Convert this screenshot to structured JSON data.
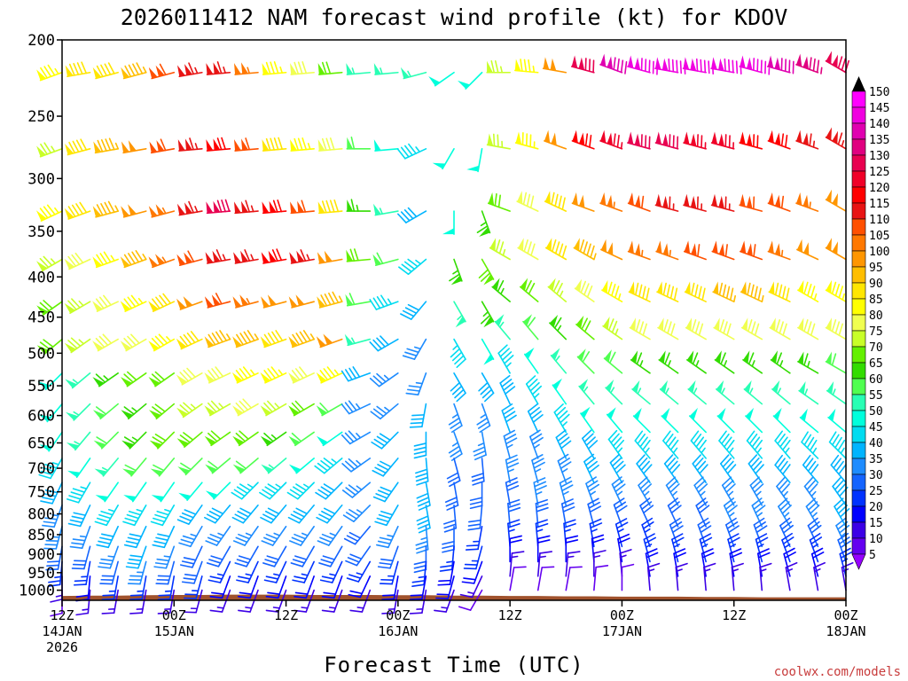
{
  "chart_data": {
    "type": "wind-barb-profile",
    "title": "2026011412 NAM forecast wind profile (kt) for KDOV",
    "xlabel": "Forecast Time (UTC)",
    "credit": "coolwx.com/models",
    "y_ticks": [
      "200",
      "250",
      "300",
      "350",
      "400",
      "450",
      "500",
      "550",
      "600",
      "650",
      "700",
      "750",
      "800",
      "850",
      "900",
      "950",
      "1000"
    ],
    "x_ticks": [
      {
        "hour": 0,
        "line1": "12Z",
        "line2": "14JAN",
        "line3": "2026"
      },
      {
        "hour": 12,
        "line1": "00Z",
        "line2": "15JAN",
        "line3": ""
      },
      {
        "hour": 24,
        "line1": "12Z",
        "line2": "",
        "line3": ""
      },
      {
        "hour": 36,
        "line1": "00Z",
        "line2": "16JAN",
        "line3": ""
      },
      {
        "hour": 48,
        "line1": "12Z",
        "line2": "",
        "line3": ""
      },
      {
        "hour": 60,
        "line1": "00Z",
        "line2": "17JAN",
        "line3": ""
      },
      {
        "hour": 72,
        "line1": "12Z",
        "line2": "",
        "line3": ""
      },
      {
        "hour": 84,
        "line1": "00Z",
        "line2": "18JAN",
        "line3": ""
      }
    ],
    "x_range_hours": [
      0,
      84
    ],
    "y_range_hpa": [
      200,
      1030
    ],
    "y_scale": "log",
    "colorbar": {
      "labels": [
        "150",
        "145",
        "140",
        "135",
        "130",
        "125",
        "120",
        "115",
        "110",
        "105",
        "100",
        "95",
        "90",
        "85",
        "80",
        "75",
        "70",
        "65",
        "60",
        "55",
        "50",
        "45",
        "40",
        "35",
        "30",
        "25",
        "20",
        "15",
        "10",
        "5"
      ],
      "colors": [
        "#ff00ff",
        "#f000e0",
        "#e000b0",
        "#e00080",
        "#e80050",
        "#f00028",
        "#ff0000",
        "#e81414",
        "#ff5000",
        "#ff7800",
        "#ff9600",
        "#ffbe00",
        "#ffe600",
        "#ffff00",
        "#f0ff50",
        "#c8ff28",
        "#64f000",
        "#32dc00",
        "#50ff50",
        "#28ffb4",
        "#00ffdc",
        "#00dcf0",
        "#00b4ff",
        "#1e8cff",
        "#1464ff",
        "#0032ff",
        "#0000ff",
        "#3c00e6",
        "#6400f0",
        "#9600ff"
      ]
    },
    "barb_times_hours": [
      0,
      3,
      6,
      9,
      12,
      15,
      18,
      21,
      24,
      27,
      30,
      33,
      36,
      39,
      42,
      45,
      48,
      51,
      54,
      57,
      60,
      63,
      66,
      69,
      72,
      75,
      78,
      81,
      84
    ],
    "barb_levels_hpa": [
      220,
      275,
      330,
      380,
      430,
      480,
      530,
      580,
      630,
      680,
      730,
      780,
      830,
      880,
      920,
      960,
      1000
    ],
    "barb_direction_deg": [
      [
        250,
        260,
        255,
        255,
        255,
        260,
        265,
        265,
        265,
        265,
        265,
        265,
        265,
        255,
        235,
        225,
        270,
        275,
        280,
        285,
        290,
        285,
        280,
        280,
        280,
        285,
        285,
        290,
        300
      ],
      [
        250,
        255,
        260,
        260,
        260,
        265,
        265,
        265,
        265,
        265,
        265,
        270,
        265,
        245,
        210,
        190,
        280,
        285,
        290,
        290,
        290,
        285,
        285,
        285,
        285,
        285,
        290,
        290,
        300
      ],
      [
        245,
        250,
        255,
        255,
        255,
        260,
        265,
        265,
        265,
        265,
        265,
        270,
        260,
        240,
        180,
        160,
        290,
        295,
        295,
        290,
        290,
        290,
        285,
        285,
        285,
        285,
        290,
        290,
        300
      ],
      [
        240,
        245,
        250,
        250,
        250,
        255,
        260,
        260,
        260,
        260,
        260,
        265,
        255,
        230,
        160,
        150,
        300,
        300,
        300,
        300,
        295,
        290,
        290,
        290,
        290,
        290,
        290,
        295,
        300
      ],
      [
        235,
        240,
        245,
        245,
        245,
        250,
        255,
        255,
        255,
        255,
        255,
        260,
        250,
        220,
        150,
        150,
        310,
        310,
        310,
        305,
        300,
        295,
        295,
        295,
        295,
        295,
        295,
        300,
        300
      ],
      [
        230,
        235,
        240,
        240,
        240,
        245,
        250,
        250,
        250,
        250,
        250,
        255,
        240,
        210,
        150,
        150,
        320,
        320,
        315,
        310,
        305,
        300,
        300,
        300,
        300,
        300,
        300,
        300,
        300
      ],
      [
        225,
        230,
        235,
        235,
        235,
        240,
        245,
        245,
        245,
        245,
        245,
        250,
        235,
        200,
        150,
        150,
        330,
        325,
        320,
        315,
        310,
        305,
        305,
        305,
        305,
        305,
        305,
        300,
        300
      ],
      [
        220,
        225,
        230,
        230,
        230,
        235,
        240,
        240,
        240,
        240,
        240,
        245,
        230,
        190,
        160,
        160,
        335,
        330,
        325,
        320,
        315,
        310,
        310,
        310,
        310,
        310,
        310,
        305,
        305
      ],
      [
        215,
        220,
        225,
        225,
        225,
        230,
        235,
        235,
        235,
        235,
        235,
        240,
        225,
        180,
        160,
        170,
        340,
        335,
        330,
        325,
        320,
        315,
        315,
        315,
        315,
        315,
        315,
        310,
        310
      ],
      [
        210,
        215,
        220,
        220,
        220,
        225,
        230,
        230,
        230,
        230,
        230,
        235,
        220,
        175,
        165,
        175,
        345,
        340,
        335,
        330,
        325,
        320,
        320,
        320,
        320,
        320,
        320,
        315,
        315
      ],
      [
        205,
        210,
        215,
        215,
        215,
        220,
        225,
        225,
        225,
        225,
        225,
        230,
        215,
        170,
        170,
        180,
        350,
        345,
        340,
        335,
        330,
        325,
        325,
        325,
        325,
        325,
        320,
        320,
        320
      ],
      [
        200,
        205,
        210,
        210,
        210,
        215,
        220,
        220,
        220,
        220,
        220,
        225,
        210,
        170,
        175,
        185,
        350,
        350,
        345,
        340,
        335,
        330,
        330,
        330,
        330,
        330,
        325,
        325,
        325
      ],
      [
        195,
        200,
        205,
        205,
        205,
        210,
        215,
        215,
        215,
        215,
        215,
        220,
        205,
        175,
        180,
        190,
        355,
        355,
        350,
        345,
        340,
        335,
        335,
        335,
        335,
        335,
        330,
        330,
        330
      ],
      [
        190,
        195,
        200,
        200,
        200,
        205,
        210,
        210,
        210,
        210,
        210,
        215,
        200,
        180,
        185,
        195,
        355,
        355,
        355,
        350,
        345,
        340,
        340,
        340,
        340,
        340,
        335,
        335,
        335
      ],
      [
        185,
        190,
        195,
        195,
        195,
        200,
        205,
        205,
        205,
        205,
        205,
        210,
        195,
        185,
        190,
        200,
        0,
        0,
        0,
        355,
        350,
        345,
        345,
        345,
        345,
        345,
        340,
        340,
        340
      ],
      [
        180,
        185,
        190,
        190,
        190,
        195,
        200,
        200,
        200,
        200,
        200,
        205,
        190,
        190,
        195,
        205,
        5,
        5,
        5,
        0,
        355,
        350,
        350,
        350,
        350,
        350,
        345,
        345,
        345
      ],
      [
        180,
        185,
        190,
        190,
        190,
        195,
        200,
        200,
        200,
        200,
        200,
        200,
        190,
        190,
        200,
        210,
        10,
        10,
        10,
        5,
        0,
        355,
        355,
        355,
        355,
        355,
        350,
        350,
        350
      ]
    ],
    "barb_speed_kt": [
      [
        85,
        90,
        90,
        95,
        110,
        115,
        115,
        105,
        85,
        80,
        70,
        55,
        55,
        55,
        50,
        50,
        75,
        85,
        100,
        130,
        140,
        145,
        145,
        145,
        145,
        145,
        140,
        135,
        130
      ],
      [
        75,
        90,
        95,
        100,
        110,
        115,
        120,
        110,
        90,
        85,
        80,
        60,
        50,
        45,
        50,
        50,
        75,
        85,
        100,
        120,
        125,
        130,
        130,
        125,
        125,
        120,
        120,
        115,
        115
      ],
      [
        85,
        90,
        95,
        100,
        105,
        115,
        130,
        115,
        120,
        110,
        90,
        65,
        55,
        40,
        50,
        65,
        70,
        80,
        90,
        100,
        105,
        110,
        115,
        115,
        115,
        110,
        110,
        105,
        100
      ],
      [
        75,
        80,
        85,
        95,
        105,
        110,
        115,
        115,
        120,
        115,
        100,
        70,
        60,
        45,
        65,
        70,
        75,
        80,
        90,
        95,
        100,
        105,
        105,
        110,
        110,
        110,
        105,
        100,
        100
      ],
      [
        70,
        75,
        80,
        85,
        90,
        100,
        110,
        105,
        100,
        100,
        95,
        60,
        45,
        40,
        55,
        65,
        65,
        70,
        75,
        80,
        85,
        90,
        90,
        90,
        95,
        95,
        90,
        85,
        85
      ],
      [
        70,
        75,
        80,
        80,
        85,
        90,
        95,
        95,
        90,
        95,
        100,
        55,
        40,
        35,
        45,
        50,
        55,
        60,
        65,
        70,
        75,
        80,
        80,
        80,
        80,
        80,
        80,
        80,
        80
      ],
      [
        50,
        55,
        65,
        70,
        70,
        80,
        80,
        85,
        85,
        80,
        85,
        40,
        35,
        35,
        40,
        40,
        45,
        50,
        55,
        60,
        60,
        65,
        65,
        65,
        65,
        65,
        65,
        65,
        60
      ],
      [
        50,
        55,
        60,
        65,
        70,
        75,
        75,
        80,
        75,
        70,
        60,
        35,
        35,
        40,
        35,
        35,
        40,
        45,
        50,
        55,
        55,
        55,
        55,
        55,
        55,
        55,
        55,
        55,
        55
      ],
      [
        50,
        55,
        60,
        65,
        70,
        70,
        70,
        70,
        65,
        60,
        50,
        35,
        40,
        40,
        35,
        35,
        40,
        40,
        45,
        50,
        50,
        50,
        50,
        50,
        50,
        50,
        50,
        50,
        50
      ],
      [
        45,
        50,
        55,
        60,
        60,
        60,
        60,
        60,
        55,
        50,
        45,
        35,
        40,
        40,
        30,
        30,
        35,
        35,
        40,
        40,
        45,
        45,
        45,
        45,
        45,
        45,
        45,
        45,
        45
      ],
      [
        40,
        45,
        50,
        50,
        50,
        50,
        50,
        45,
        45,
        45,
        40,
        35,
        40,
        40,
        30,
        30,
        35,
        35,
        35,
        40,
        40,
        40,
        40,
        40,
        40,
        40,
        40,
        40,
        40
      ],
      [
        35,
        40,
        45,
        45,
        45,
        40,
        40,
        40,
        40,
        40,
        40,
        35,
        40,
        40,
        30,
        30,
        30,
        35,
        35,
        35,
        35,
        35,
        35,
        35,
        35,
        35,
        35,
        35,
        40
      ],
      [
        35,
        35,
        40,
        40,
        40,
        35,
        35,
        35,
        35,
        35,
        35,
        30,
        35,
        35,
        30,
        25,
        30,
        30,
        30,
        30,
        30,
        30,
        30,
        30,
        35,
        35,
        35,
        35,
        40
      ],
      [
        30,
        30,
        35,
        40,
        35,
        30,
        30,
        30,
        30,
        30,
        30,
        30,
        30,
        30,
        25,
        25,
        25,
        25,
        25,
        25,
        25,
        25,
        30,
        30,
        30,
        30,
        30,
        30,
        35
      ],
      [
        25,
        25,
        30,
        35,
        30,
        30,
        25,
        25,
        25,
        25,
        25,
        25,
        25,
        25,
        20,
        20,
        20,
        20,
        20,
        20,
        20,
        25,
        25,
        25,
        25,
        25,
        25,
        25,
        30
      ],
      [
        15,
        20,
        25,
        25,
        25,
        25,
        20,
        20,
        20,
        20,
        20,
        20,
        20,
        20,
        20,
        15,
        15,
        15,
        15,
        15,
        15,
        20,
        20,
        20,
        20,
        20,
        20,
        20,
        25
      ],
      [
        10,
        15,
        15,
        15,
        15,
        15,
        15,
        15,
        15,
        15,
        15,
        15,
        15,
        15,
        15,
        10,
        10,
        10,
        10,
        10,
        10,
        15,
        15,
        15,
        15,
        15,
        15,
        15,
        15
      ]
    ],
    "surface_pressure_hpa": [
      1017,
      1016,
      1016,
      1015,
      1014,
      1014,
      1013,
      1013,
      1013,
      1014,
      1014,
      1014,
      1015,
      1015,
      1016,
      1016,
      1017,
      1017,
      1018,
      1018,
      1019,
      1019,
      1019,
      1020,
      1020,
      1021,
      1021,
      1021,
      1021
    ]
  }
}
